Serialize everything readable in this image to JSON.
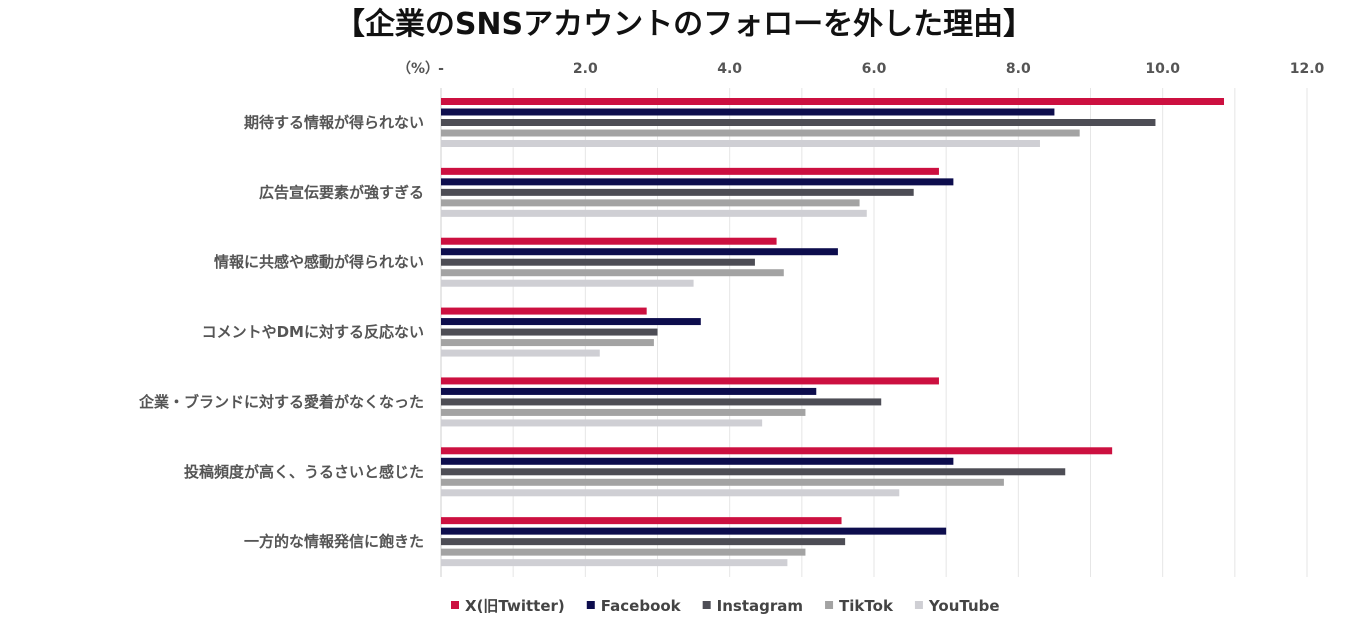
{
  "chart_data": {
    "type": "bar",
    "orientation": "horizontal",
    "title": "【企業のSNSアカウントのフォローを外した理由】",
    "unit_label": "（%）",
    "x_tick_labels": [
      "-",
      "2.0",
      "4.0",
      "6.0",
      "8.0",
      "10.0",
      "12.0"
    ],
    "x_ticks": [
      0,
      2,
      4,
      6,
      8,
      10,
      12
    ],
    "xlim": [
      0,
      12
    ],
    "axis_position": "top",
    "grid": true,
    "legend_position": "bottom",
    "categories": [
      "期待する情報が得られない",
      "広告宣伝要素が強すぎる",
      "情報に共感や感動が得られない",
      "コメントやDMに対する反応ない",
      "企業・ブランドに対する愛着がなくなった",
      "投稿頻度が高く、うるさいと感じた",
      "一方的な情報発信に飽きた"
    ],
    "series": [
      {
        "name": "X(旧Twitter)",
        "color": "#cc1040",
        "values": [
          10.85,
          6.9,
          4.65,
          2.85,
          6.9,
          9.3,
          5.55
        ]
      },
      {
        "name": "Facebook",
        "color": "#0d0d4d",
        "values": [
          8.5,
          7.1,
          5.5,
          3.6,
          5.2,
          7.1,
          7.0
        ]
      },
      {
        "name": "Instagram",
        "color": "#4d4d55",
        "values": [
          9.9,
          6.55,
          4.35,
          3.0,
          6.1,
          8.65,
          5.6
        ]
      },
      {
        "name": "TikTok",
        "color": "#a3a3a3",
        "values": [
          8.85,
          5.8,
          4.75,
          2.95,
          5.05,
          7.8,
          5.05
        ]
      },
      {
        "name": "YouTube",
        "color": "#cfcfd4",
        "values": [
          8.3,
          5.9,
          3.5,
          2.2,
          4.45,
          6.35,
          4.8
        ]
      }
    ]
  }
}
